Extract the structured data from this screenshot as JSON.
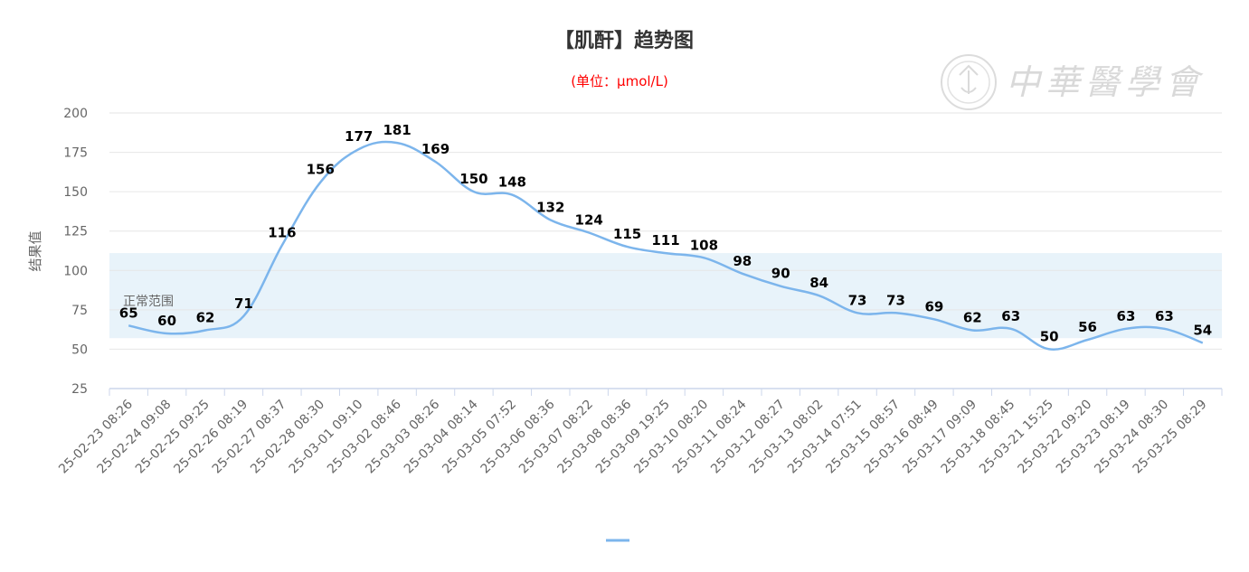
{
  "watermark": {
    "text": "中華醫學會",
    "color": "#d9d9d9"
  },
  "chart_data": {
    "type": "line",
    "title": "【肌酐】趋势图",
    "subtitle": "(单位：μmol/L)",
    "xlabel": "",
    "ylabel": "结果值",
    "ylim": [
      25,
      200
    ],
    "yticks": [
      25,
      50,
      75,
      100,
      125,
      150,
      175,
      200
    ],
    "grid": true,
    "legend": "bottom-center",
    "normal_range": {
      "label": "正常范围",
      "low": 57,
      "high": 111,
      "color": "#e8f3fa"
    },
    "colors": {
      "line": "#7cb5ec",
      "subtitle": "#ff0000",
      "title": "#333333",
      "axis_text": "#666666",
      "grid": "#e6e6e6",
      "axis_line": "#ccd6eb",
      "data_label": "#000000"
    },
    "categories": [
      "25-02-23 08:26",
      "25-02-24 09:08",
      "25-02-25 09:25",
      "25-02-26 08:19",
      "25-02-27 08:37",
      "25-02-28 08:30",
      "25-03-01 09:10",
      "25-03-02 08:46",
      "25-03-03 08:26",
      "25-03-04 08:14",
      "25-03-05 07:52",
      "25-03-06 08:36",
      "25-03-07 08:22",
      "25-03-08 08:36",
      "25-03-09 19:25",
      "25-03-10 08:20",
      "25-03-11 08:24",
      "25-03-12 08:27",
      "25-03-13 08:02",
      "25-03-14 07:51",
      "25-03-15 08:57",
      "25-03-16 08:49",
      "25-03-17 09:09",
      "25-03-18 08:45",
      "25-03-21 15:25",
      "25-03-22 09:20",
      "25-03-23 08:19",
      "25-03-24 08:30",
      "25-03-25 08:29"
    ],
    "series": [
      {
        "values": [
          65,
          60,
          62,
          71,
          116,
          156,
          177,
          181,
          169,
          150,
          148,
          132,
          124,
          115,
          111,
          108,
          98,
          90,
          84,
          73,
          73,
          69,
          62,
          63,
          50,
          56,
          63,
          63,
          54
        ]
      }
    ]
  }
}
